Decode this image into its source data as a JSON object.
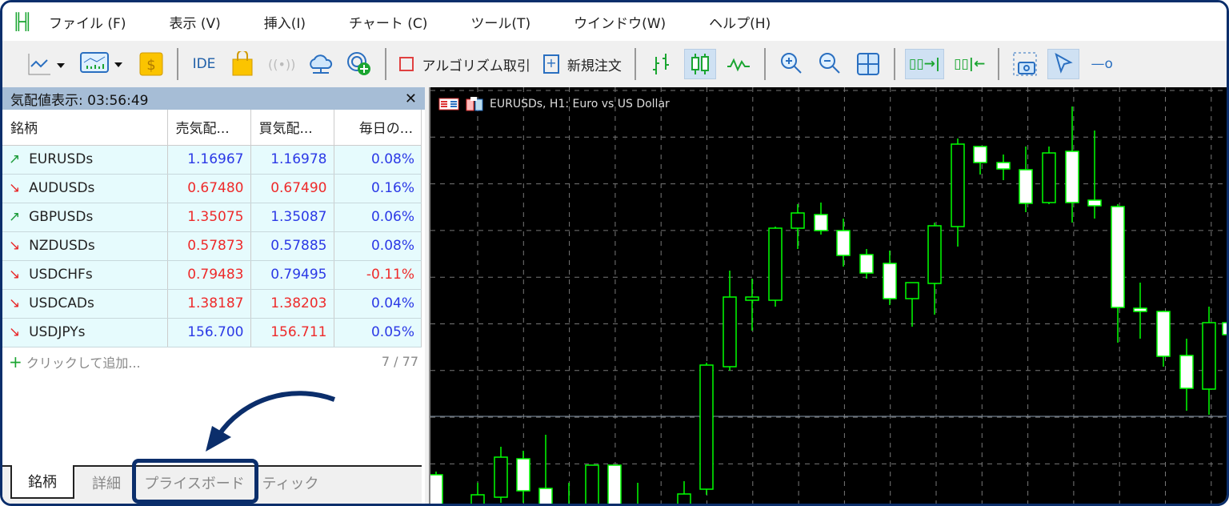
{
  "menu": {
    "items": [
      "ファイル (F)",
      "表示 (V)",
      "挿入(I)",
      "チャート (C)",
      "ツール(T)",
      "ウインドウ(W)",
      "ヘルプ(H)"
    ]
  },
  "toolbar": {
    "ide": "IDE",
    "algo": "アルゴリズム取引",
    "new_order": "新規注文"
  },
  "market_watch": {
    "title": "気配値表示: 03:56:49",
    "columns": [
      "銘柄",
      "売気配...",
      "買気配...",
      "毎日の..."
    ],
    "rows": [
      {
        "symbol": "EURUSDs",
        "bid": "1.16967",
        "ask": "1.16978",
        "change": "0.08%",
        "dir": "up",
        "bid_color": "blue",
        "ask_color": "blue"
      },
      {
        "symbol": "AUDUSDs",
        "bid": "0.67480",
        "ask": "0.67490",
        "change": "0.16%",
        "dir": "down",
        "bid_color": "red",
        "ask_color": "red"
      },
      {
        "symbol": "GBPUSDs",
        "bid": "1.35075",
        "ask": "1.35087",
        "change": "0.06%",
        "dir": "up",
        "bid_color": "red",
        "ask_color": "blue"
      },
      {
        "symbol": "NZDUSDs",
        "bid": "0.57873",
        "ask": "0.57885",
        "change": "0.08%",
        "dir": "down",
        "bid_color": "red",
        "ask_color": "blue"
      },
      {
        "symbol": "USDCHFs",
        "bid": "0.79483",
        "ask": "0.79495",
        "change": "-0.11%",
        "dir": "down",
        "bid_color": "red",
        "ask_color": "blue",
        "change_color": "red"
      },
      {
        "symbol": "USDCADs",
        "bid": "1.38187",
        "ask": "1.38203",
        "change": "0.04%",
        "dir": "down",
        "bid_color": "red",
        "ask_color": "red"
      },
      {
        "symbol": "USDJPYs",
        "bid": "156.700",
        "ask": "156.711",
        "change": "0.05%",
        "dir": "down",
        "bid_color": "blue",
        "ask_color": "red"
      }
    ],
    "add_label": "クリックして追加...",
    "count": "7 / 77",
    "tabs": [
      "銘柄",
      "詳細",
      "プライスボード",
      "ティック"
    ]
  },
  "chart": {
    "title": "EURUSDs, H1:  Euro vs US Dollar",
    "bull_color": "#00ff00",
    "bear_color": "#ffffff"
  },
  "colors": {
    "accent": "#0b2e6b",
    "up": "#1a9b38",
    "down": "#e8282a"
  }
}
